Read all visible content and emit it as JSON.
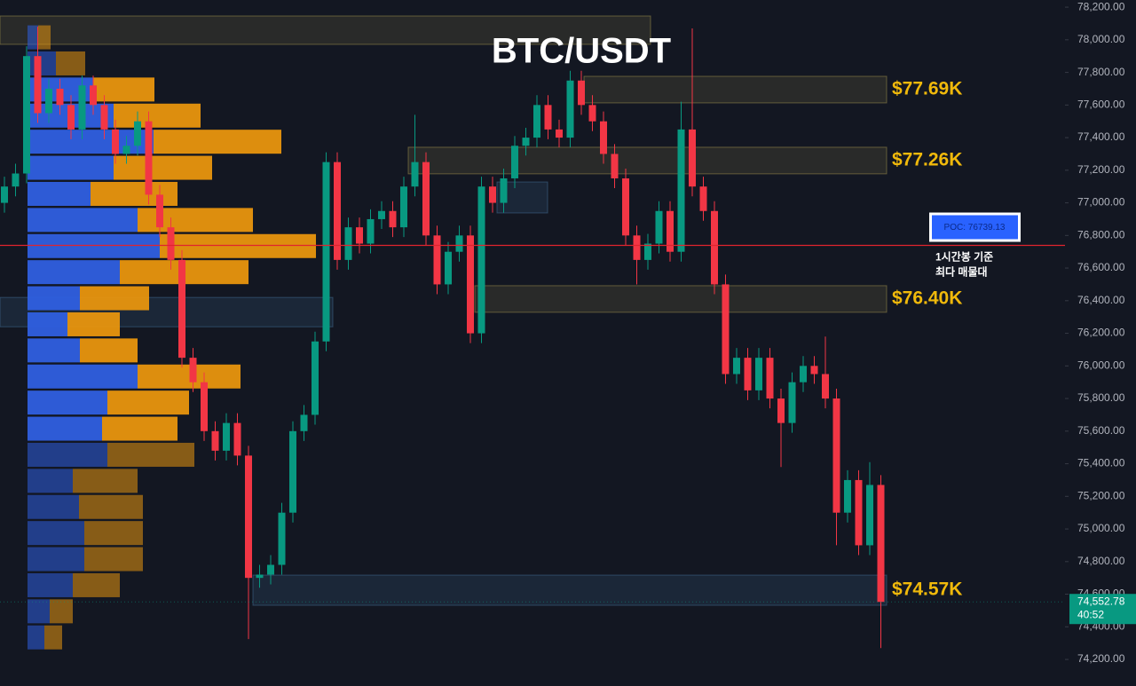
{
  "chart_data": {
    "type": "candlestick",
    "title": "BTC/USDT",
    "ylim": [
      74037,
      78244
    ],
    "yticks": [
      {
        "value": 74200,
        "label": "74,200.00"
      },
      {
        "value": 74400,
        "label": "74,400.00"
      },
      {
        "value": 74600,
        "label": "74,600.00"
      },
      {
        "value": 74800,
        "label": "74,800.00"
      },
      {
        "value": 75000,
        "label": "75,000.00"
      },
      {
        "value": 75200,
        "label": "75,200.00"
      },
      {
        "value": 75400,
        "label": "75,400.00"
      },
      {
        "value": 75600,
        "label": "75,600.00"
      },
      {
        "value": 75800,
        "label": "75,800.00"
      },
      {
        "value": 76000,
        "label": "76,000.00"
      },
      {
        "value": 76200,
        "label": "76,200.00"
      },
      {
        "value": 76400,
        "label": "76,400.00"
      },
      {
        "value": 76600,
        "label": "76,600.00"
      },
      {
        "value": 76800,
        "label": "76,800.00"
      },
      {
        "value": 77000,
        "label": "77,000.00"
      },
      {
        "value": 77200,
        "label": "77,200.00"
      },
      {
        "value": 77400,
        "label": "77,400.00"
      },
      {
        "value": 77600,
        "label": "77,600.00"
      },
      {
        "value": 77800,
        "label": "77,800.00"
      },
      {
        "value": 78000,
        "label": "78,000.00"
      },
      {
        "value": 78200,
        "label": "78,200.00"
      }
    ],
    "up_color": "#089981",
    "down_color": "#f23645",
    "open": [
      77000,
      77100,
      77180,
      77900,
      77550,
      77700,
      77600,
      77450,
      77720,
      77600,
      77450,
      77300,
      77350,
      77500,
      77050,
      76850,
      76650,
      76050,
      75900,
      75600,
      75480,
      75650,
      75450,
      74700,
      74720,
      74780,
      75100,
      75600,
      75700,
      76150,
      77250,
      76650,
      76850,
      76750,
      76900,
      76950,
      76850,
      77100,
      77250,
      76800,
      76500,
      76700,
      76800,
      76200,
      77100,
      77000,
      77150,
      77350,
      77400,
      77600,
      77450,
      77400,
      77750,
      77600,
      77500,
      77300,
      77150,
      76800,
      76650,
      76750,
      76950,
      76700,
      77450,
      77100,
      76950,
      76500,
      75950,
      76050,
      75850,
      76050,
      75800,
      75650,
      75900,
      76000,
      75950,
      75800,
      75100,
      75300,
      74900,
      75270
    ],
    "close": [
      77100,
      77180,
      77900,
      77550,
      77700,
      77600,
      77450,
      77720,
      77600,
      77450,
      77300,
      77350,
      77500,
      77050,
      76850,
      76650,
      76050,
      75900,
      75600,
      75480,
      75650,
      75450,
      74700,
      74720,
      74780,
      75100,
      75600,
      75700,
      76150,
      77250,
      76650,
      76850,
      76750,
      76900,
      76950,
      76850,
      77100,
      77250,
      76800,
      76500,
      76700,
      76800,
      76200,
      77100,
      77000,
      77150,
      77350,
      77400,
      77600,
      77450,
      77400,
      77750,
      77600,
      77500,
      77300,
      77150,
      76800,
      76650,
      76750,
      76950,
      76700,
      77450,
      77100,
      76950,
      76500,
      75950,
      76050,
      75850,
      76050,
      75800,
      75650,
      75900,
      76000,
      75950,
      75800,
      75100,
      75300,
      74900,
      75270,
      74552.78
    ],
    "high": [
      77160,
      77240,
      77960,
      78080,
      77760,
      77760,
      77660,
      77780,
      77780,
      77660,
      77510,
      77410,
      77560,
      77560,
      77110,
      76910,
      76710,
      76110,
      75960,
      75660,
      75710,
      75710,
      75510,
      74780,
      74840,
      75160,
      75660,
      75760,
      76210,
      77310,
      77310,
      76910,
      76910,
      76960,
      77010,
      77010,
      77160,
      77540,
      77310,
      76860,
      76760,
      76860,
      76860,
      77160,
      77160,
      77210,
      77410,
      77460,
      77660,
      77660,
      77510,
      77810,
      77810,
      77660,
      77560,
      77360,
      77210,
      76860,
      76810,
      77010,
      77010,
      77620,
      78070,
      77160,
      77010,
      76560,
      76110,
      76110,
      76110,
      76110,
      75860,
      75960,
      76060,
      76060,
      76180,
      75860,
      75360,
      75360,
      75410,
      75330
    ],
    "low": [
      76940,
      77040,
      77120,
      77490,
      77490,
      77540,
      77390,
      77390,
      77540,
      77390,
      77240,
      77240,
      77290,
      76990,
      76790,
      76590,
      75990,
      75840,
      75540,
      75420,
      75420,
      75390,
      74325,
      74640,
      74660,
      74720,
      75040,
      75540,
      75640,
      76090,
      76590,
      76590,
      76690,
      76690,
      76840,
      76790,
      76790,
      77040,
      76740,
      76440,
      76440,
      76640,
      76140,
      76140,
      76940,
      76940,
      77090,
      77290,
      77340,
      77390,
      77340,
      77340,
      77540,
      77440,
      77240,
      77090,
      76740,
      76500,
      76590,
      76690,
      76640,
      76640,
      77040,
      76890,
      76440,
      75890,
      75890,
      75790,
      75790,
      75740,
      75380,
      75590,
      75840,
      75890,
      75740,
      74900,
      75040,
      74840,
      74840,
      74270
    ],
    "zones": [
      {
        "top": 78146,
        "bottom": 77972
      },
      {
        "top": 77776,
        "bottom": 77613,
        "label": "$77.69K"
      },
      {
        "top": 77341,
        "bottom": 77178,
        "label": "$77.26K"
      },
      {
        "top": 77128,
        "bottom": 76938
      },
      {
        "top": 76492,
        "bottom": 76329,
        "label": "$76.40K"
      },
      {
        "top": 76420,
        "bottom": 76240
      },
      {
        "top": 74717,
        "bottom": 74532,
        "label": "$74.57K"
      }
    ],
    "profile": {
      "prices": [
        78015,
        77855,
        77695,
        77535,
        77375,
        77215,
        77055,
        76895,
        76735,
        76575,
        76415,
        76255,
        76095,
        75935,
        75775,
        75615,
        75455,
        75295,
        75135,
        74975,
        74815,
        74655,
        74495,
        74335
      ],
      "buy": [
        12,
        32,
        74,
        97,
        142,
        97,
        71,
        124,
        149,
        104,
        59,
        45,
        59,
        124,
        90,
        84,
        90,
        51,
        58,
        64,
        64,
        51,
        25,
        19
      ],
      "sell": [
        14,
        33,
        69,
        98,
        144,
        111,
        98,
        130,
        176,
        145,
        78,
        59,
        65,
        116,
        92,
        85,
        98,
        73,
        72,
        66,
        66,
        53,
        26,
        20
      ],
      "xlim": [
        0,
        330
      ]
    },
    "poc": {
      "value": 76739.13,
      "label": "POC: 76739.13"
    },
    "note": [
      "1시간봉 기준",
      "최다 매물대"
    ],
    "last_price": {
      "value": 74552.78,
      "label": "74,552.78"
    },
    "countdown": "40:52"
  }
}
